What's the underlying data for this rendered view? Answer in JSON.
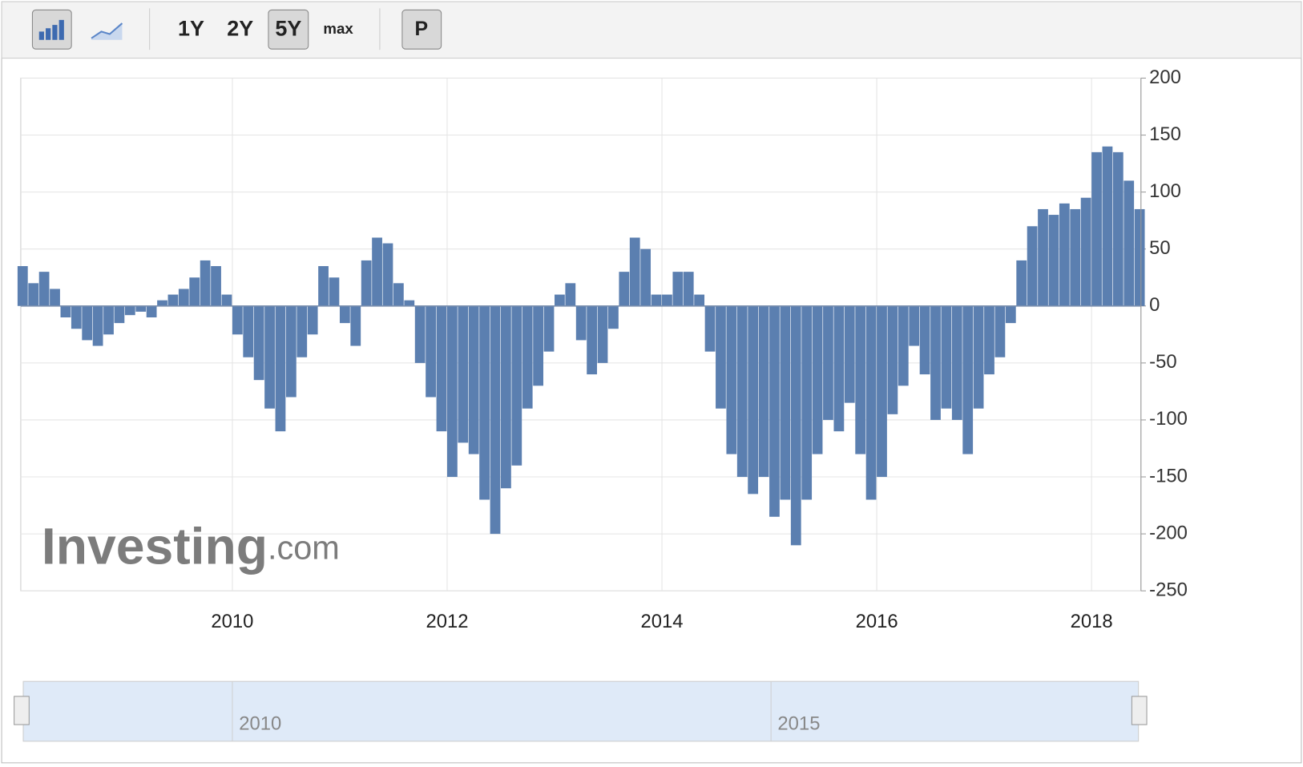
{
  "toolbar": {
    "ranges": [
      "1Y",
      "2Y",
      "5Y",
      "max"
    ],
    "active": "5Y",
    "button": "P"
  },
  "chart_data": {
    "type": "bar",
    "color": "#5b7fb0",
    "grid": true,
    "watermark": {
      "brand": "Investing",
      "suffix": ".com"
    },
    "x": [
      2008.05,
      2008.15,
      2008.25,
      2008.35,
      2008.45,
      2008.55,
      2008.65,
      2008.75,
      2008.85,
      2008.95,
      2009.05,
      2009.15,
      2009.25,
      2009.35,
      2009.45,
      2009.55,
      2009.65,
      2009.75,
      2009.85,
      2009.95,
      2010.05,
      2010.15,
      2010.25,
      2010.35,
      2010.45,
      2010.55,
      2010.65,
      2010.75,
      2010.85,
      2010.95,
      2011.05,
      2011.15,
      2011.25,
      2011.35,
      2011.45,
      2011.55,
      2011.65,
      2011.75,
      2011.85,
      2011.95,
      2012.05,
      2012.15,
      2012.25,
      2012.35,
      2012.45,
      2012.55,
      2012.65,
      2012.75,
      2012.85,
      2012.95,
      2013.05,
      2013.15,
      2013.25,
      2013.35,
      2013.45,
      2013.55,
      2013.65,
      2013.75,
      2013.85,
      2013.95,
      2014.05,
      2014.15,
      2014.25,
      2014.35,
      2014.45,
      2014.55,
      2014.65,
      2014.75,
      2014.85,
      2014.95,
      2015.05,
      2015.15,
      2015.25,
      2015.35,
      2015.45,
      2015.55,
      2015.65,
      2015.75,
      2015.85,
      2015.95,
      2016.05,
      2016.15,
      2016.25,
      2016.35,
      2016.45,
      2016.55,
      2016.65,
      2016.75,
      2016.85,
      2016.95,
      2017.05,
      2017.15,
      2017.25,
      2017.35,
      2017.45,
      2017.55,
      2017.65,
      2017.75,
      2017.85,
      2017.95,
      2018.05,
      2018.15,
      2018.25,
      2018.35,
      2018.45
    ],
    "values": [
      35,
      20,
      30,
      15,
      -10,
      -20,
      -30,
      -35,
      -25,
      -15,
      -8,
      -5,
      -10,
      5,
      10,
      15,
      25,
      40,
      35,
      10,
      -25,
      -45,
      -65,
      -90,
      -110,
      -80,
      -45,
      -25,
      35,
      25,
      -15,
      -35,
      40,
      60,
      55,
      20,
      5,
      -50,
      -80,
      -110,
      -150,
      -120,
      -130,
      -170,
      -200,
      -160,
      -140,
      -90,
      -70,
      -40,
      10,
      20,
      -30,
      -60,
      -50,
      -20,
      30,
      60,
      50,
      10,
      10,
      30,
      30,
      10,
      -40,
      -90,
      -130,
      -150,
      -165,
      -150,
      -185,
      -170,
      -210,
      -170,
      -130,
      -100,
      -110,
      -85,
      -130,
      -170,
      -150,
      -95,
      -70,
      -35,
      -60,
      -100,
      -90,
      -100,
      -130,
      -90,
      -60,
      -45,
      -15,
      40,
      70,
      85,
      80,
      90,
      85,
      95,
      135,
      140,
      135,
      110,
      85
    ],
    "xlim": [
      2008.03,
      2018.46
    ],
    "xticks": [
      2010,
      2012,
      2014,
      2016,
      2018
    ],
    "ylim": [
      -250,
      200
    ],
    "yticks": [
      200,
      150,
      100,
      50,
      0,
      -50,
      -100,
      -150,
      -200,
      -250
    ],
    "navigator": {
      "xticks": [
        2010,
        2015
      ]
    }
  }
}
